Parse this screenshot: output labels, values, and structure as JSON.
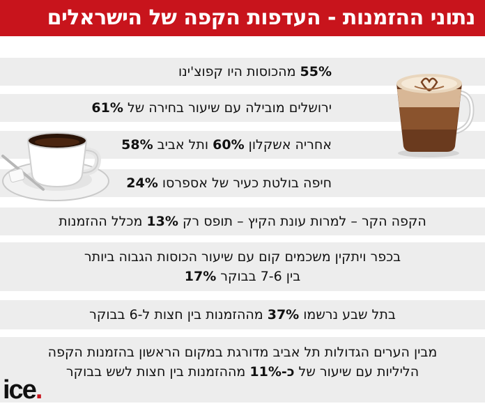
{
  "header": {
    "title": "נתוני ההזמנות - העדפות הקפה של הישראלים"
  },
  "rows": [
    {
      "bold": "55%",
      "after": " מהכוסות היו קפוצ'ינו"
    },
    {
      "before": "ירושלים מובילה עם שיעור בחירה של ",
      "bold": "61%"
    },
    {
      "before": "אחריה אשקלון ",
      "bold": "60%",
      "mid": " ותל אביב ",
      "bold2": "58%"
    },
    {
      "before": "חיפה בולטת כעיר של אספרסו ",
      "bold": "24%"
    },
    {
      "before": "הקפה הקר – למרות עונת הקיץ – תופס רק ",
      "bold": "13%",
      "after": " מכלל ההזמנות"
    },
    {
      "line1": "בכפר ויתקין משכמים קום עם שיעור הכוסות הגבוה ביותר",
      "line2_before": "בין 7-6 בבוקר ",
      "bold": "17%"
    },
    {
      "before": "בתל שבע נרשמו ",
      "bold": "37%",
      "after": " מההזמנות בין חצות ל-6 בבוקר"
    },
    {
      "line1": "מבין הערים הגדולות תל אביב מדורגת במקום הראשון בהזמנות הקפה",
      "line2_before": "הליליות עם שיעור של ",
      "bold": "כ-11%",
      "line2_after": " מההזמנות בין חצות לשש בבוקר"
    }
  ],
  "logo": {
    "text": "ice",
    "dot": "."
  },
  "icons": [
    "cappuccino-glass-icon",
    "espresso-cup-icon"
  ],
  "colors": {
    "header_bg": "#c8141c",
    "row_bg": "#ededed",
    "text": "#111111"
  }
}
